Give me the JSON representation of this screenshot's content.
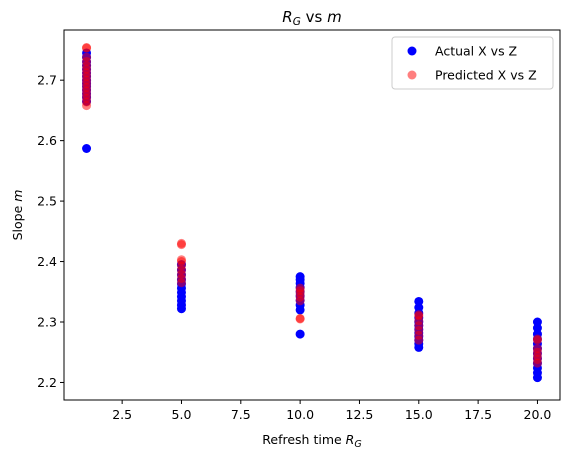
{
  "chart_data": {
    "type": "scatter",
    "title": "R_G vs m",
    "title_parts": {
      "var1": "R",
      "var1_sub": "G",
      "mid": " vs ",
      "var2": "m"
    },
    "xlabel": "Refresh time R_G",
    "xlabel_parts": {
      "text": "Refresh time ",
      "var": "R",
      "var_sub": "G"
    },
    "ylabel": "Slope m",
    "ylabel_parts": {
      "text": "Slope ",
      "var": "m"
    },
    "xlim": [
      0.05,
      20.95
    ],
    "ylim": [
      2.171,
      2.783
    ],
    "xticks": [
      2.5,
      5.0,
      7.5,
      10.0,
      12.5,
      15.0,
      17.5,
      20.0
    ],
    "xtick_labels": [
      "2.5",
      "5.0",
      "7.5",
      "10.0",
      "12.5",
      "15.0",
      "17.5",
      "20.0"
    ],
    "yticks": [
      2.2,
      2.3,
      2.4,
      2.5,
      2.6,
      2.7
    ],
    "ytick_labels": [
      "2.2",
      "2.3",
      "2.4",
      "2.5",
      "2.6",
      "2.7"
    ],
    "grid": false,
    "legend_position": "top-right",
    "series": [
      {
        "name": "Actual X vs Z",
        "color": "#0000ff",
        "opacity": 1.0,
        "points": [
          [
            1,
            2.587
          ],
          [
            1,
            2.665
          ],
          [
            1,
            2.672
          ],
          [
            1,
            2.678
          ],
          [
            1,
            2.684
          ],
          [
            1,
            2.69
          ],
          [
            1,
            2.695
          ],
          [
            1,
            2.7
          ],
          [
            1,
            2.706
          ],
          [
            1,
            2.712
          ],
          [
            1,
            2.718
          ],
          [
            1,
            2.724
          ],
          [
            1,
            2.73
          ],
          [
            1,
            2.738
          ],
          [
            1,
            2.745
          ],
          [
            5,
            2.322
          ],
          [
            5,
            2.328
          ],
          [
            5,
            2.335
          ],
          [
            5,
            2.342
          ],
          [
            5,
            2.349
          ],
          [
            5,
            2.356
          ],
          [
            5,
            2.363
          ],
          [
            5,
            2.37
          ],
          [
            5,
            2.378
          ],
          [
            5,
            2.386
          ],
          [
            5,
            2.395
          ],
          [
            10,
            2.28
          ],
          [
            10,
            2.32
          ],
          [
            10,
            2.328
          ],
          [
            10,
            2.336
          ],
          [
            10,
            2.343
          ],
          [
            10,
            2.35
          ],
          [
            10,
            2.357
          ],
          [
            10,
            2.364
          ],
          [
            10,
            2.37
          ],
          [
            10,
            2.375
          ],
          [
            15,
            2.258
          ],
          [
            15,
            2.264
          ],
          [
            15,
            2.27
          ],
          [
            15,
            2.276
          ],
          [
            15,
            2.282
          ],
          [
            15,
            2.288
          ],
          [
            15,
            2.294
          ],
          [
            15,
            2.3
          ],
          [
            15,
            2.307
          ],
          [
            15,
            2.315
          ],
          [
            15,
            2.324
          ],
          [
            15,
            2.334
          ],
          [
            20,
            2.208
          ],
          [
            20,
            2.216
          ],
          [
            20,
            2.224
          ],
          [
            20,
            2.232
          ],
          [
            20,
            2.24
          ],
          [
            20,
            2.248
          ],
          [
            20,
            2.256
          ],
          [
            20,
            2.264
          ],
          [
            20,
            2.272
          ],
          [
            20,
            2.28
          ],
          [
            20,
            2.29
          ],
          [
            20,
            2.3
          ]
        ]
      },
      {
        "name": "Predicted X vs Z",
        "color": "#ff0000",
        "opacity": 0.5,
        "points": [
          [
            1,
            2.658
          ],
          [
            1,
            2.664
          ],
          [
            1,
            2.67
          ],
          [
            1,
            2.676
          ],
          [
            1,
            2.682
          ],
          [
            1,
            2.688
          ],
          [
            1,
            2.694
          ],
          [
            1,
            2.7
          ],
          [
            1,
            2.706
          ],
          [
            1,
            2.712
          ],
          [
            1,
            2.718
          ],
          [
            1,
            2.724
          ],
          [
            1,
            2.731
          ],
          [
            1,
            2.738
          ],
          [
            1,
            2.753
          ],
          [
            1,
            2.754
          ],
          [
            5,
            2.365
          ],
          [
            5,
            2.372
          ],
          [
            5,
            2.379
          ],
          [
            5,
            2.386
          ],
          [
            5,
            2.393
          ],
          [
            5,
            2.4
          ],
          [
            5,
            2.403
          ],
          [
            5,
            2.428
          ],
          [
            5,
            2.43
          ],
          [
            10,
            2.305
          ],
          [
            10,
            2.306
          ],
          [
            10,
            2.335
          ],
          [
            10,
            2.341
          ],
          [
            10,
            2.347
          ],
          [
            10,
            2.352
          ],
          [
            10,
            2.356
          ],
          [
            15,
            2.27
          ],
          [
            15,
            2.278
          ],
          [
            15,
            2.286
          ],
          [
            15,
            2.294
          ],
          [
            15,
            2.302
          ],
          [
            15,
            2.31
          ],
          [
            15,
            2.312
          ],
          [
            20,
            2.232
          ],
          [
            20,
            2.238
          ],
          [
            20,
            2.244
          ],
          [
            20,
            2.25
          ],
          [
            20,
            2.256
          ],
          [
            20,
            2.27
          ],
          [
            20,
            2.272
          ]
        ]
      }
    ]
  }
}
